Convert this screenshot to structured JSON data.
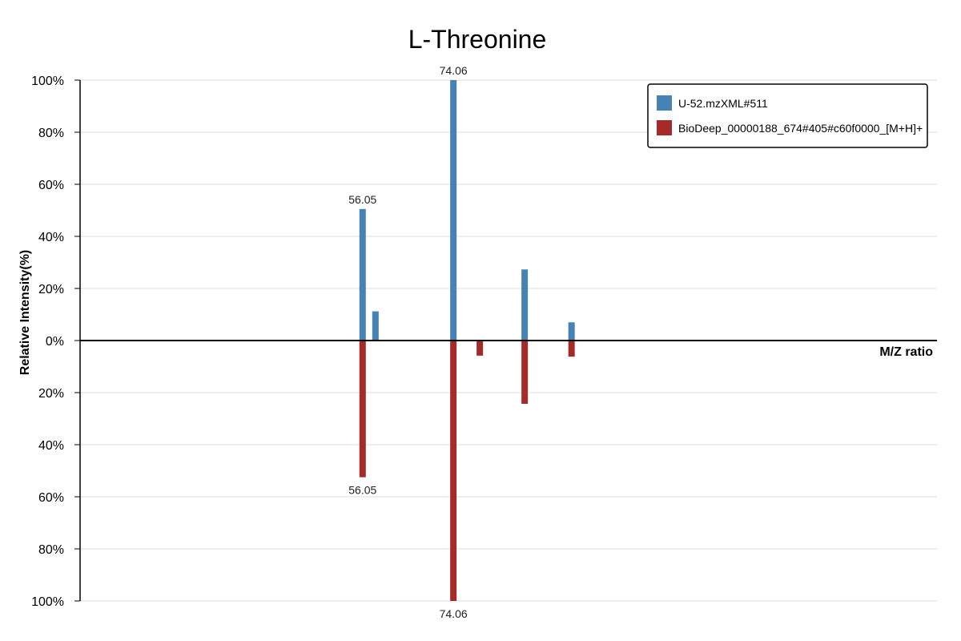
{
  "chart_data": {
    "type": "bar",
    "title": "L-Threonine",
    "xlabel": "M/Z ratio",
    "ylabel": "Relative Intensity(%)",
    "mirror": true,
    "ylim": [
      -100,
      100
    ],
    "xlim": [
      0,
      170
    ],
    "grid": true,
    "legend_position": "top-right",
    "y_ticks": [
      "100%",
      "80%",
      "60%",
      "40%",
      "20%",
      "0%",
      "20%",
      "40%",
      "60%",
      "80%",
      "100%"
    ],
    "series": [
      {
        "name": "U-52.mzXML#511",
        "color": "#4682b4",
        "direction": "up",
        "points": [
          {
            "mz": 56.05,
            "intensity": 50.5,
            "label": "56.05"
          },
          {
            "mz": 58.6,
            "intensity": 11.2,
            "label": ""
          },
          {
            "mz": 74.06,
            "intensity": 100,
            "label": "74.06"
          },
          {
            "mz": 88.2,
            "intensity": 27.3,
            "label": ""
          },
          {
            "mz": 97.5,
            "intensity": 7.0,
            "label": ""
          }
        ]
      },
      {
        "name": "BioDeep_00000188_674#405#c60f0000_[M+H]+",
        "color": "#a52a2a",
        "direction": "down",
        "points": [
          {
            "mz": 56.05,
            "intensity": 52.5,
            "label": "56.05"
          },
          {
            "mz": 74.06,
            "intensity": 100,
            "label": "74.06"
          },
          {
            "mz": 79.3,
            "intensity": 5.8,
            "label": ""
          },
          {
            "mz": 88.2,
            "intensity": 24.3,
            "label": ""
          },
          {
            "mz": 97.5,
            "intensity": 6.2,
            "label": ""
          }
        ]
      }
    ]
  }
}
